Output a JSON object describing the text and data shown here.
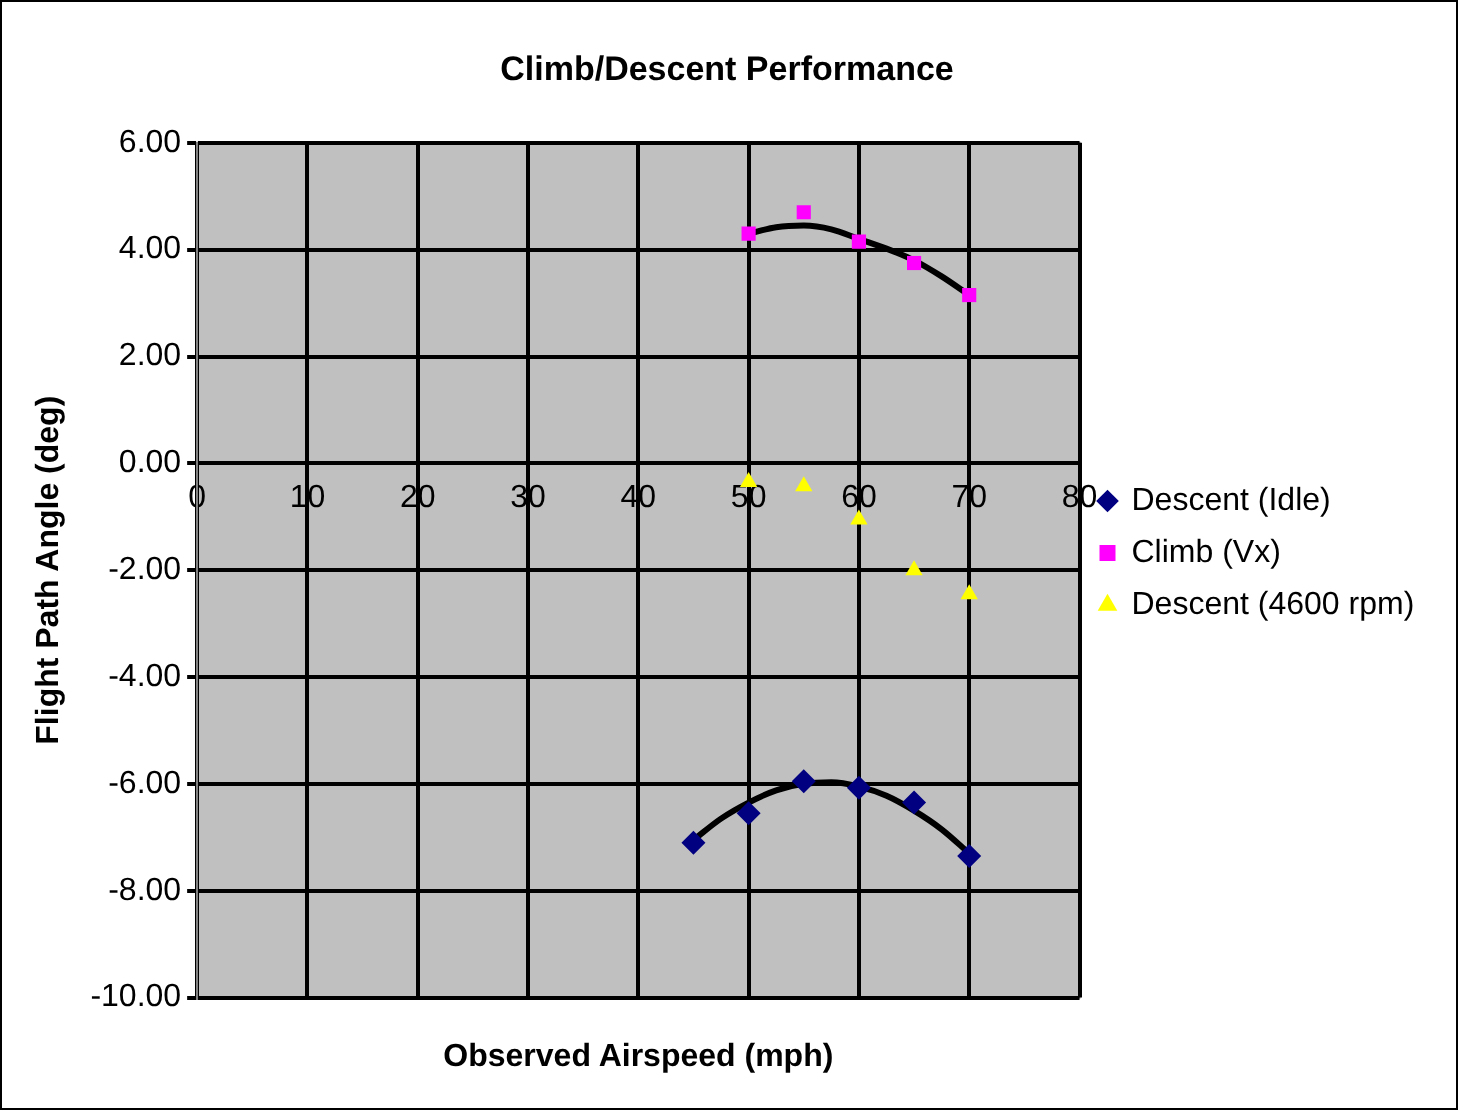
{
  "chart_data": {
    "type": "scatter",
    "title": "Climb/Descent Performance",
    "xlabel": "Observed Airspeed (mph)",
    "ylabel": "Flight Path Angle (deg)",
    "xlim": [
      0,
      80
    ],
    "xticks": [
      0,
      10,
      20,
      30,
      40,
      50,
      60,
      70,
      80
    ],
    "ylim": [
      -10,
      6
    ],
    "yticks": [
      {
        "value": -10,
        "label": "-10.00"
      },
      {
        "value": -8,
        "label": "-8.00"
      },
      {
        "value": -6,
        "label": "-6.00"
      },
      {
        "value": -4,
        "label": "-4.00"
      },
      {
        "value": -2,
        "label": "-2.00"
      },
      {
        "value": 0,
        "label": "0.00"
      },
      {
        "value": 2,
        "label": "2.00"
      },
      {
        "value": 4,
        "label": "4.00"
      },
      {
        "value": 6,
        "label": "6.00"
      }
    ],
    "grid": true,
    "legend": "right",
    "series": [
      {
        "name": "Descent (Idle)",
        "color": "#000080",
        "marker": "diamond",
        "x": [
          45,
          50,
          55,
          60,
          65,
          70
        ],
        "values": [
          -7.1,
          -6.55,
          -5.95,
          -6.07,
          -6.35,
          -7.35
        ]
      },
      {
        "name": "Climb (Vx)",
        "color": "#ff00ff",
        "marker": "square",
        "x": [
          50,
          55,
          60,
          65,
          70
        ],
        "values": [
          4.3,
          4.7,
          4.15,
          3.75,
          3.15
        ]
      },
      {
        "name": "Descent (4600 rpm)",
        "color": "#ffff00",
        "marker": "triangle",
        "x": [
          50,
          55,
          60,
          65,
          70
        ],
        "values": [
          -0.35,
          -0.43,
          -1.05,
          -2.0,
          -2.45
        ]
      },
      {
        "type": "line",
        "color": "#000000",
        "marker": "none",
        "x": [
          45,
          47.5,
          50,
          52.5,
          55,
          57.5,
          60,
          62.5,
          65,
          67.5,
          70
        ],
        "values": [
          -7.05,
          -6.65,
          -6.35,
          -6.12,
          -6.0,
          -5.97,
          -6.05,
          -6.22,
          -6.5,
          -6.85,
          -7.3
        ]
      },
      {
        "type": "line",
        "color": "#000000",
        "marker": "none",
        "x": [
          50,
          52.5,
          55,
          57.5,
          60,
          62.5,
          65,
          67.5,
          70
        ],
        "values": [
          4.3,
          4.42,
          4.45,
          4.38,
          4.2,
          4.02,
          3.8,
          3.5,
          3.15
        ]
      }
    ]
  }
}
